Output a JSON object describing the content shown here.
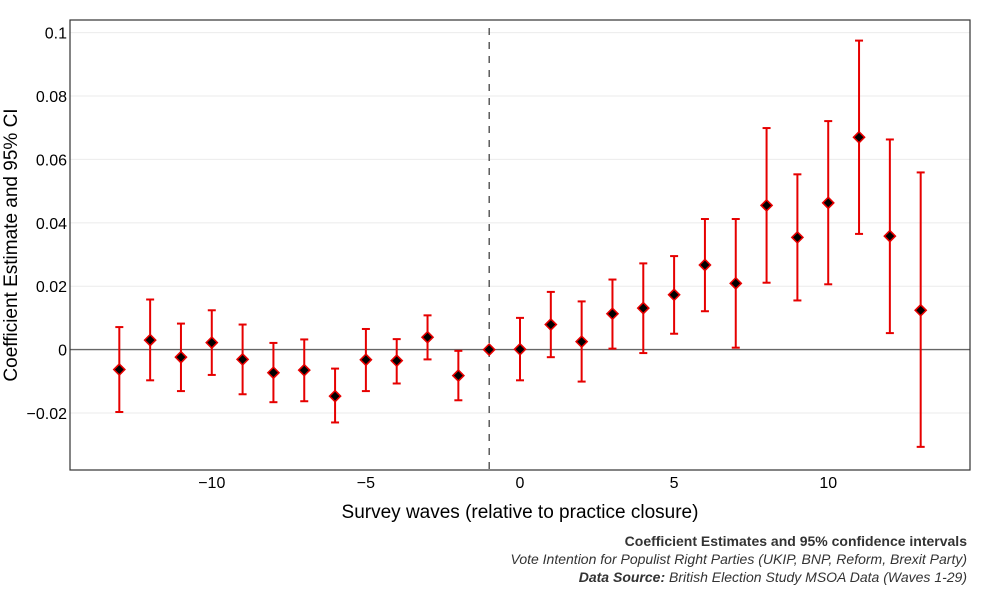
{
  "chart_data": {
    "type": "scatter",
    "xlabel": "Survey waves (relative to practice closure)",
    "ylabel": "Coefficient Estimate and 95% CI",
    "xlim": [
      -14.6,
      14.6
    ],
    "ylim": [
      -0.038,
      0.104
    ],
    "x_ticks": [
      -10,
      -5,
      0,
      5,
      10
    ],
    "x_tick_labels": [
      "−10",
      "−5",
      "0",
      "5",
      "10"
    ],
    "y_ticks": [
      -0.02,
      0,
      0.02,
      0.04,
      0.06,
      0.08,
      0.1
    ],
    "y_tick_labels": [
      "−0.02",
      "0",
      "0.02",
      "0.04",
      "0.06",
      "0.08",
      "0.1"
    ],
    "reference_vline": -1,
    "reference_hline": 0,
    "grid": true,
    "marker_color": "#e60000",
    "marker_fill": "#000000",
    "points": [
      {
        "x": -13,
        "y": -0.0063,
        "lo": -0.0197,
        "hi": 0.0071
      },
      {
        "x": -12,
        "y": 0.003,
        "lo": -0.0097,
        "hi": 0.0158
      },
      {
        "x": -11,
        "y": -0.0024,
        "lo": -0.0131,
        "hi": 0.0082
      },
      {
        "x": -10,
        "y": 0.0022,
        "lo": -0.008,
        "hi": 0.0124
      },
      {
        "x": -9,
        "y": -0.0031,
        "lo": -0.0141,
        "hi": 0.0079
      },
      {
        "x": -8,
        "y": -0.0073,
        "lo": -0.0166,
        "hi": 0.0021
      },
      {
        "x": -7,
        "y": -0.0065,
        "lo": -0.0163,
        "hi": 0.0032
      },
      {
        "x": -6,
        "y": -0.0147,
        "lo": -0.023,
        "hi": -0.006
      },
      {
        "x": -5,
        "y": -0.0032,
        "lo": -0.0131,
        "hi": 0.0065
      },
      {
        "x": -4,
        "y": -0.0035,
        "lo": -0.0107,
        "hi": 0.0033
      },
      {
        "x": -3,
        "y": 0.0039,
        "lo": -0.0031,
        "hi": 0.0108
      },
      {
        "x": -2,
        "y": -0.0082,
        "lo": -0.016,
        "hi": -0.0004
      },
      {
        "x": -1,
        "y": 0.0,
        "lo": 0.0,
        "hi": 0.0
      },
      {
        "x": 0,
        "y": 0.0001,
        "lo": -0.0097,
        "hi": 0.01
      },
      {
        "x": 1,
        "y": 0.0079,
        "lo": -0.0024,
        "hi": 0.0182
      },
      {
        "x": 2,
        "y": 0.0025,
        "lo": -0.0101,
        "hi": 0.0152
      },
      {
        "x": 3,
        "y": 0.0113,
        "lo": 0.0003,
        "hi": 0.0221
      },
      {
        "x": 4,
        "y": 0.0131,
        "lo": -0.0011,
        "hi": 0.0272
      },
      {
        "x": 5,
        "y": 0.0173,
        "lo": 0.005,
        "hi": 0.0295
      },
      {
        "x": 6,
        "y": 0.0267,
        "lo": 0.0121,
        "hi": 0.0412
      },
      {
        "x": 7,
        "y": 0.0209,
        "lo": 0.0006,
        "hi": 0.0412
      },
      {
        "x": 8,
        "y": 0.0455,
        "lo": 0.0211,
        "hi": 0.0699
      },
      {
        "x": 9,
        "y": 0.0354,
        "lo": 0.0155,
        "hi": 0.0553
      },
      {
        "x": 10,
        "y": 0.0463,
        "lo": 0.0206,
        "hi": 0.0721
      },
      {
        "x": 11,
        "y": 0.067,
        "lo": 0.0365,
        "hi": 0.0975
      },
      {
        "x": 12,
        "y": 0.0358,
        "lo": 0.0052,
        "hi": 0.0663
      },
      {
        "x": 13,
        "y": 0.0124,
        "lo": -0.0307,
        "hi": 0.0559
      }
    ]
  },
  "caption": {
    "line1": "Coefficient Estimates and 95% confidence intervals",
    "line2": "Vote Intention for Populist Right Parties (UKIP, BNP, Reform, Brexit Party)",
    "line3_label": "Data Source:",
    "line3_text": " British Election Study MSOA Data (Waves 1-29)"
  }
}
